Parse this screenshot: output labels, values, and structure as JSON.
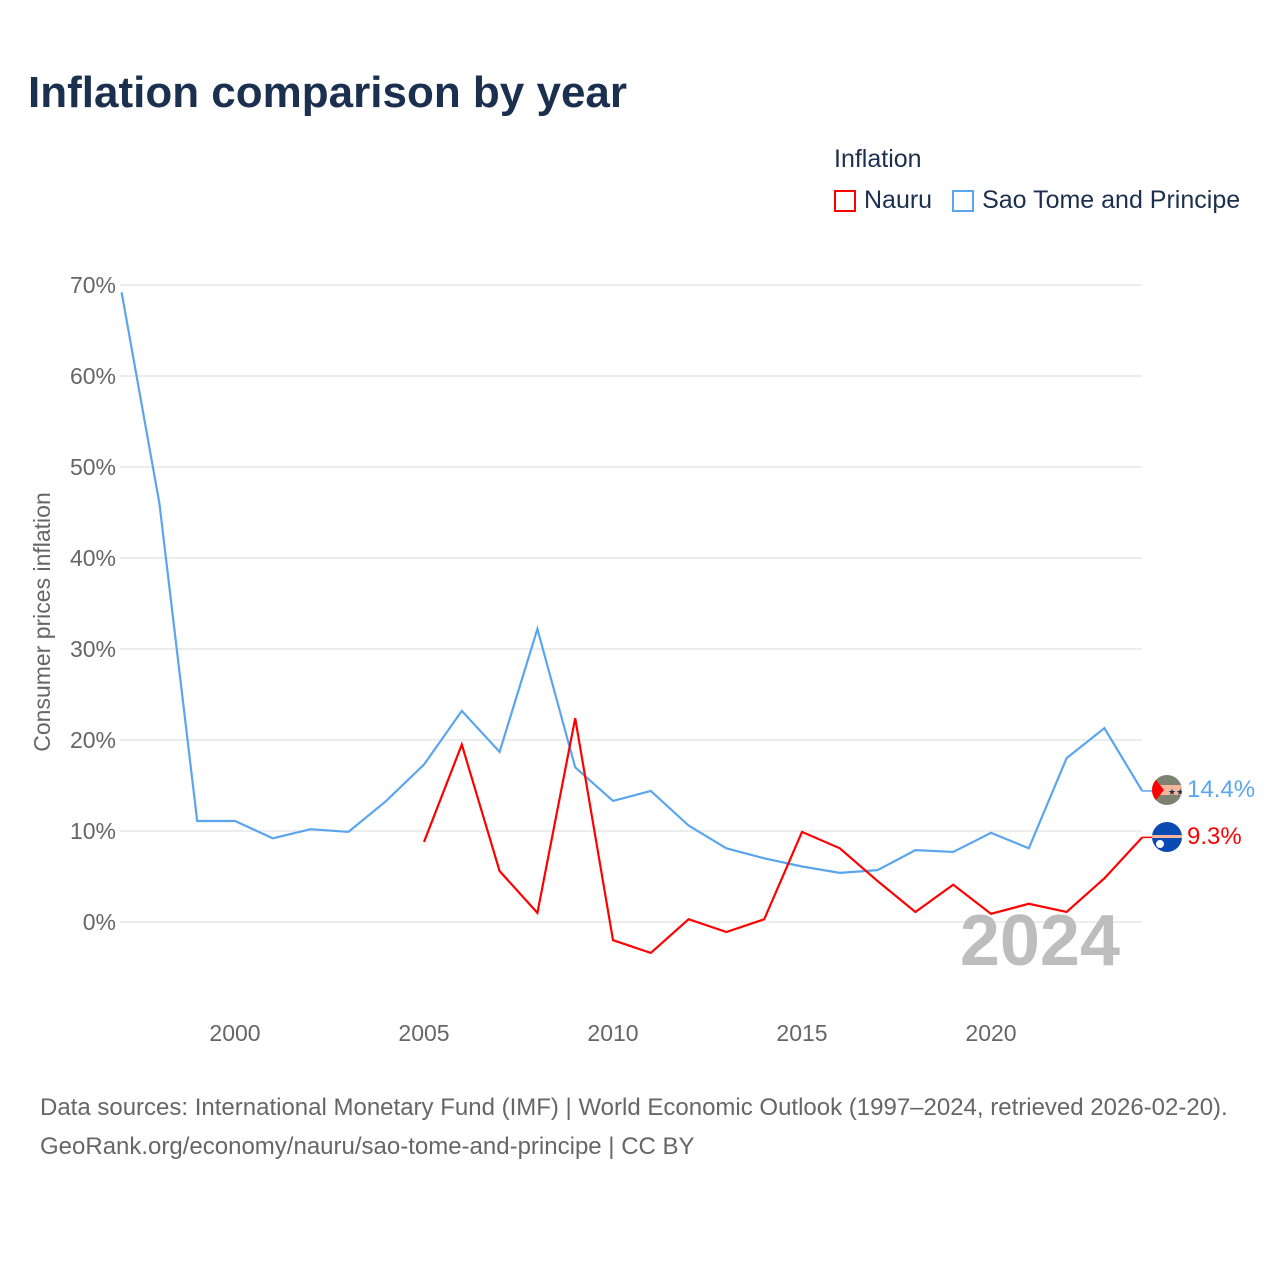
{
  "title": "Inflation comparison by year",
  "legend": {
    "title": "Inflation",
    "items": [
      {
        "label": "Nauru",
        "color": "#ff0000"
      },
      {
        "label": "Sao Tome and Principe",
        "color": "#5aa5ee"
      }
    ]
  },
  "source": {
    "line1": "Data sources: International Monetary Fund (IMF) | World Economic Outlook (1997–2024, retrieved 2026-02-20).",
    "line2": "GeoRank.org/economy/nauru/sao-tome-and-principe | CC BY"
  },
  "chart_data": {
    "type": "line",
    "title": "Inflation comparison by year",
    "xlabel": "",
    "ylabel": "Consumer prices inflation",
    "xlim": [
      1997,
      2024
    ],
    "ylim": [
      -8,
      70
    ],
    "x_ticks": [
      "2000",
      "2005",
      "2010",
      "2015",
      "2020"
    ],
    "y_ticks": [
      "0%",
      "10%",
      "20%",
      "30%",
      "40%",
      "50%",
      "60%",
      "70%"
    ],
    "watermark_year": "2024",
    "series": [
      {
        "name": "Nauru",
        "color": "#ff0000",
        "end_label": "9.3%",
        "x": [
          2005,
          2006,
          2007,
          2008,
          2009,
          2010,
          2011,
          2012,
          2013,
          2014,
          2015,
          2016,
          2017,
          2018,
          2019,
          2020,
          2021,
          2022,
          2023,
          2024
        ],
        "values": [
          8.8,
          19.5,
          5.6,
          1.0,
          22.4,
          -2.0,
          -3.4,
          0.3,
          -1.1,
          0.3,
          9.9,
          8.1,
          4.5,
          1.1,
          4.1,
          0.9,
          2.0,
          1.1,
          4.8,
          9.3
        ]
      },
      {
        "name": "Sao Tome and Principe",
        "color": "#5aa5ee",
        "end_label": "14.4%",
        "x": [
          1997,
          1998,
          1999,
          2000,
          2001,
          2002,
          2003,
          2004,
          2005,
          2006,
          2007,
          2008,
          2009,
          2010,
          2011,
          2012,
          2013,
          2014,
          2015,
          2016,
          2017,
          2018,
          2019,
          2020,
          2021,
          2022,
          2023,
          2024
        ],
        "values": [
          69.2,
          46.0,
          11.1,
          11.1,
          9.2,
          10.2,
          9.9,
          13.3,
          17.3,
          23.2,
          18.7,
          32.2,
          17.0,
          13.3,
          14.4,
          10.6,
          8.1,
          7.0,
          6.1,
          5.4,
          5.7,
          7.9,
          7.7,
          9.8,
          8.1,
          18.0,
          21.3,
          14.4
        ]
      }
    ]
  }
}
